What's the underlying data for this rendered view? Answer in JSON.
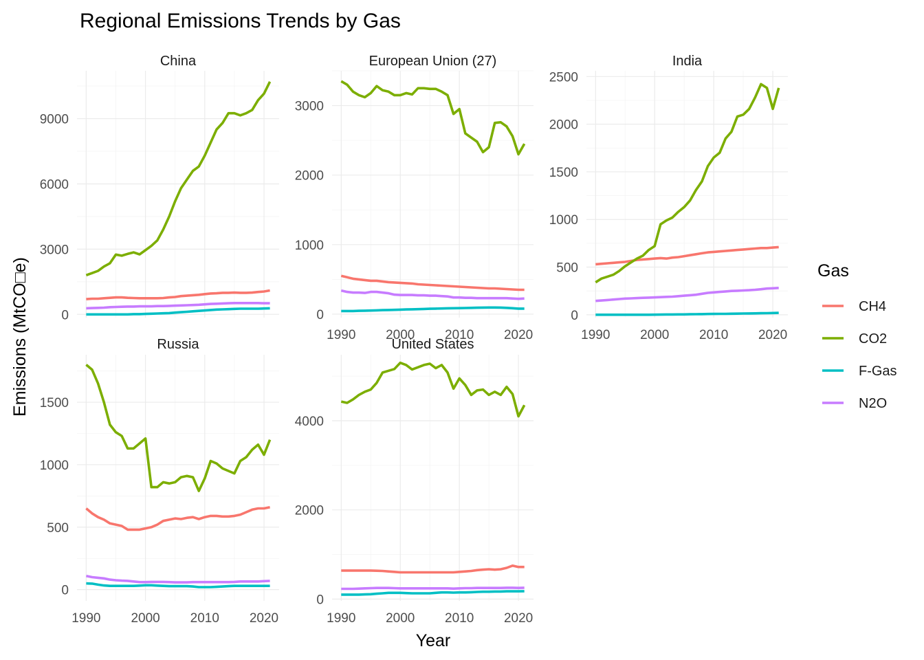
{
  "chart_data": {
    "type": "line",
    "title": "Regional Emissions Trends by Gas",
    "xlabel": "Year",
    "ylabel": "Emissions (MtCO□e)",
    "legend": {
      "title": "Gas",
      "position": "right"
    },
    "grid": true,
    "scales": "free_y",
    "x": [
      1990,
      1991,
      1992,
      1993,
      1994,
      1995,
      1996,
      1997,
      1998,
      1999,
      2000,
      2001,
      2002,
      2003,
      2004,
      2005,
      2006,
      2007,
      2008,
      2009,
      2010,
      2011,
      2012,
      2013,
      2014,
      2015,
      2016,
      2017,
      2018,
      2019,
      2020,
      2021
    ],
    "series_colors": {
      "CH4": "#F8766D",
      "CO2": "#7CAE00",
      "F-Gas": "#00BFC4",
      "N2O": "#C77CFF"
    },
    "panels": [
      {
        "name": "China",
        "ylim": [
          -150,
          11200
        ],
        "yticks": [
          0,
          3000,
          6000,
          9000
        ],
        "ytick_labels": [
          "0",
          "3000",
          "6000",
          "9000"
        ],
        "series": [
          {
            "name": "CH4",
            "values": [
              700,
              720,
              720,
              740,
              760,
              780,
              780,
              760,
              750,
              740,
              740,
              740,
              740,
              750,
              780,
              800,
              840,
              860,
              880,
              900,
              930,
              960,
              970,
              990,
              990,
              1000,
              990,
              990,
              1000,
              1030,
              1050,
              1100
            ]
          },
          {
            "name": "CO2",
            "values": [
              1800,
              1900,
              2000,
              2200,
              2350,
              2750,
              2700,
              2780,
              2850,
              2760,
              2950,
              3150,
              3400,
              3900,
              4500,
              5200,
              5800,
              6200,
              6600,
              6800,
              7300,
              7900,
              8500,
              8800,
              9250,
              9250,
              9150,
              9250,
              9400,
              9850,
              10150,
              10700
            ]
          },
          {
            "name": "F-Gas",
            "values": [
              0,
              0,
              0,
              0,
              0,
              0,
              0,
              0,
              10,
              10,
              20,
              30,
              40,
              50,
              60,
              80,
              100,
              120,
              140,
              160,
              180,
              200,
              220,
              230,
              240,
              250,
              260,
              260,
              260,
              260,
              270,
              280
            ]
          },
          {
            "name": "N2O",
            "values": [
              280,
              290,
              300,
              310,
              330,
              340,
              350,
              360,
              360,
              370,
              370,
              370,
              380,
              380,
              390,
              400,
              410,
              420,
              430,
              440,
              460,
              480,
              490,
              500,
              510,
              520,
              520,
              520,
              520,
              520,
              510,
              510
            ]
          }
        ]
      },
      {
        "name": "European Union (27)",
        "ylim": [
          -50,
          3500
        ],
        "yticks": [
          0,
          1000,
          2000,
          3000
        ],
        "ytick_labels": [
          "0",
          "1000",
          "2000",
          "3000"
        ],
        "series": [
          {
            "name": "CH4",
            "values": [
              550,
              530,
              510,
              500,
              490,
              480,
              480,
              470,
              460,
              455,
              450,
              445,
              440,
              430,
              425,
              420,
              415,
              410,
              405,
              400,
              395,
              390,
              385,
              380,
              375,
              370,
              370,
              365,
              360,
              355,
              350,
              350
            ]
          },
          {
            "name": "CO2",
            "values": [
              3350,
              3300,
              3200,
              3150,
              3120,
              3180,
              3280,
              3220,
              3200,
              3150,
              3150,
              3180,
              3160,
              3250,
              3250,
              3240,
              3240,
              3200,
              3150,
              2880,
              2950,
              2600,
              2540,
              2480,
              2330,
              2400,
              2750,
              2760,
              2700,
              2560,
              2300,
              2450
            ]
          },
          {
            "name": "F-Gas",
            "values": [
              45,
              45,
              45,
              48,
              50,
              52,
              55,
              58,
              60,
              62,
              65,
              68,
              70,
              72,
              75,
              78,
              80,
              82,
              84,
              85,
              86,
              88,
              90,
              92,
              94,
              95,
              95,
              94,
              90,
              85,
              80,
              80
            ]
          },
          {
            "name": "N2O",
            "values": [
              340,
              320,
              310,
              310,
              305,
              320,
              320,
              310,
              300,
              280,
              275,
              275,
              275,
              270,
              270,
              265,
              265,
              260,
              255,
              240,
              240,
              235,
              235,
              230,
              230,
              230,
              230,
              230,
              230,
              225,
              220,
              225
            ]
          }
        ]
      },
      {
        "name": "India",
        "ylim": [
          -30,
          2560
        ],
        "yticks": [
          0,
          500,
          1000,
          1500,
          2000,
          2500
        ],
        "ytick_labels": [
          "0",
          "500",
          "1000",
          "1500",
          "2000",
          "2500"
        ],
        "series": [
          {
            "name": "CH4",
            "values": [
              530,
              535,
              540,
              545,
              550,
              555,
              565,
              575,
              580,
              585,
              590,
              595,
              590,
              600,
              605,
              615,
              625,
              635,
              645,
              655,
              660,
              665,
              670,
              675,
              680,
              685,
              690,
              695,
              700,
              700,
              705,
              710
            ]
          },
          {
            "name": "CO2",
            "values": [
              340,
              380,
              400,
              420,
              460,
              510,
              550,
              590,
              620,
              680,
              720,
              950,
              990,
              1020,
              1080,
              1130,
              1200,
              1310,
              1400,
              1560,
              1650,
              1700,
              1850,
              1920,
              2080,
              2100,
              2160,
              2280,
              2420,
              2380,
              2160,
              2380
            ]
          },
          {
            "name": "F-Gas",
            "values": [
              0,
              0,
              0,
              0,
              0,
              0,
              0,
              0,
              0,
              0,
              1,
              2,
              3,
              3,
              4,
              4,
              5,
              6,
              7,
              8,
              9,
              10,
              10,
              11,
              12,
              13,
              14,
              15,
              16,
              17,
              18,
              20
            ]
          },
          {
            "name": "N2O",
            "values": [
              145,
              150,
              155,
              160,
              165,
              170,
              172,
              175,
              178,
              180,
              182,
              185,
              188,
              190,
              195,
              200,
              205,
              210,
              220,
              230,
              235,
              240,
              245,
              250,
              252,
              255,
              258,
              262,
              268,
              275,
              278,
              282
            ]
          }
        ]
      },
      {
        "name": "Russia",
        "ylim": [
          -90,
          1880
        ],
        "yticks": [
          0,
          500,
          1000,
          1500
        ],
        "ytick_labels": [
          "0",
          "500",
          "1000",
          "1500"
        ],
        "series": [
          {
            "name": "CH4",
            "values": [
              650,
              610,
              580,
              560,
              530,
              520,
              510,
              480,
              480,
              480,
              490,
              500,
              520,
              550,
              560,
              570,
              565,
              575,
              580,
              565,
              580,
              590,
              590,
              585,
              585,
              590,
              600,
              620,
              640,
              650,
              650,
              660
            ]
          },
          {
            "name": "CO2",
            "values": [
              1800,
              1760,
              1650,
              1500,
              1320,
              1260,
              1230,
              1130,
              1130,
              1170,
              1210,
              820,
              820,
              860,
              850,
              860,
              900,
              910,
              900,
              790,
              890,
              1030,
              1010,
              970,
              950,
              930,
              1030,
              1060,
              1120,
              1160,
              1080,
              1200
            ]
          },
          {
            "name": "F-Gas",
            "values": [
              50,
              48,
              40,
              33,
              30,
              30,
              30,
              30,
              30,
              32,
              35,
              35,
              32,
              30,
              28,
              28,
              28,
              28,
              25,
              20,
              20,
              20,
              22,
              25,
              28,
              30,
              30,
              30,
              30,
              30,
              30,
              30
            ]
          },
          {
            "name": "N2O",
            "values": [
              110,
              100,
              95,
              90,
              80,
              75,
              72,
              70,
              65,
              60,
              60,
              62,
              62,
              62,
              60,
              58,
              58,
              58,
              60,
              60,
              60,
              60,
              60,
              60,
              60,
              62,
              65,
              65,
              65,
              65,
              68,
              70
            ]
          }
        ]
      },
      {
        "name": "United States",
        "ylim": [
          -40,
          5480
        ],
        "yticks": [
          0,
          2000,
          4000
        ],
        "ytick_labels": [
          "0",
          "2000",
          "4000"
        ],
        "series": [
          {
            "name": "CH4",
            "values": [
              640,
              640,
              640,
              640,
              640,
              640,
              635,
              630,
              620,
              610,
              600,
              600,
              600,
              600,
              600,
              600,
              600,
              600,
              600,
              600,
              610,
              620,
              630,
              650,
              660,
              670,
              660,
              670,
              700,
              750,
              720,
              720
            ]
          },
          {
            "name": "CO2",
            "values": [
              4430,
              4400,
              4480,
              4580,
              4650,
              4700,
              4850,
              5080,
              5120,
              5160,
              5300,
              5250,
              5150,
              5200,
              5250,
              5280,
              5180,
              5250,
              5080,
              4720,
              4950,
              4800,
              4580,
              4680,
              4700,
              4580,
              4650,
              4580,
              4760,
              4600,
              4100,
              4350
            ]
          },
          {
            "name": "F-Gas",
            "values": [
              100,
              100,
              100,
              100,
              105,
              110,
              120,
              130,
              140,
              140,
              140,
              135,
              130,
              130,
              130,
              130,
              140,
              150,
              150,
              145,
              150,
              150,
              155,
              160,
              165,
              165,
              170,
              170,
              175,
              175,
              175,
              178
            ]
          },
          {
            "name": "N2O",
            "values": [
              230,
              230,
              230,
              235,
              240,
              245,
              250,
              250,
              250,
              245,
              240,
              240,
              240,
              240,
              240,
              240,
              240,
              240,
              240,
              235,
              240,
              245,
              245,
              250,
              250,
              250,
              250,
              250,
              255,
              255,
              250,
              255
            ]
          }
        ]
      }
    ],
    "xticks": [
      1990,
      2000,
      2010,
      2020
    ],
    "xtick_labels": [
      "1990",
      "2000",
      "2010",
      "2020"
    ]
  }
}
